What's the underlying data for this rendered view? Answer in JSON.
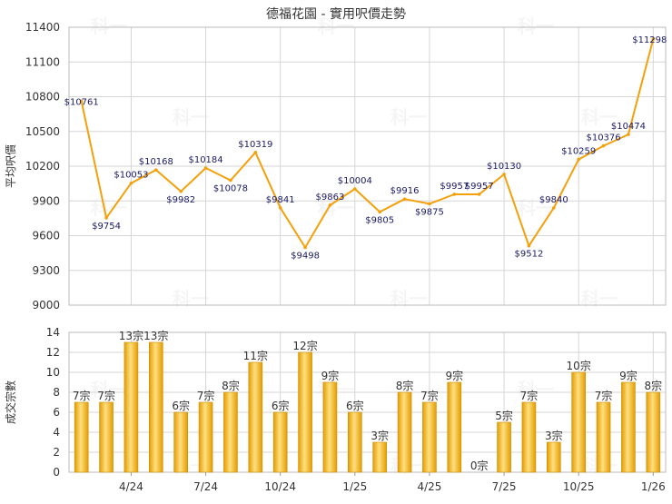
{
  "title": "德福花園 - 實用呎價走勢",
  "watermark": "科一",
  "colors": {
    "line": "#f5a00a",
    "bar_light": "#ffd86a",
    "bar_dark": "#e09a00",
    "grid": "#d6d6d6",
    "text": "#333333"
  },
  "chart_data": [
    {
      "type": "line",
      "title": "德福花園 - 實用呎價走勢",
      "ylabel": "平均呎價",
      "ylim": [
        9000,
        11400
      ],
      "yticks": [
        9000,
        9300,
        9600,
        9900,
        10200,
        10500,
        10800,
        11100,
        11400
      ],
      "grid": true,
      "values": [
        10761,
        9754,
        10053,
        10168,
        9982,
        10184,
        10078,
        10319,
        9841,
        9498,
        9863,
        10004,
        9805,
        9916,
        9875,
        9957,
        9957,
        10130,
        9512,
        9840,
        10259,
        10376,
        10474,
        11298
      ],
      "labels": [
        "$10761",
        "$9754",
        "$10053",
        "$10168",
        "$9982",
        "$10184",
        "$10078",
        "$10319",
        "$9841",
        "$9498",
        "$9863",
        "$10004",
        "$9805",
        "$9916",
        "$9875",
        "$9957",
        "$9957",
        "$10130",
        "$9512",
        "$9840",
        "$10259",
        "$10376",
        "$10474",
        "$11298"
      ]
    },
    {
      "type": "bar",
      "ylabel": "成交宗數",
      "ylim": [
        0,
        14
      ],
      "yticks": [
        0,
        2,
        4,
        6,
        8,
        10,
        12,
        14
      ],
      "grid": true,
      "values": [
        7,
        7,
        13,
        13,
        6,
        7,
        8,
        11,
        6,
        12,
        9,
        6,
        3,
        8,
        7,
        9,
        0,
        5,
        7,
        3,
        10,
        7,
        9,
        8
      ],
      "labels": [
        "7宗",
        "7宗",
        "13宗",
        "13宗",
        "6宗",
        "7宗",
        "8宗",
        "11宗",
        "6宗",
        "12宗",
        "9宗",
        "6宗",
        "3宗",
        "8宗",
        "7宗",
        "9宗",
        "0宗",
        "5宗",
        "7宗",
        "3宗",
        "10宗",
        "7宗",
        "9宗",
        "8宗"
      ],
      "x_tick_labels": [
        {
          "index": 2,
          "label": "4/24"
        },
        {
          "index": 5,
          "label": "7/24"
        },
        {
          "index": 8,
          "label": "10/24"
        },
        {
          "index": 11,
          "label": "1/25"
        },
        {
          "index": 14,
          "label": "4/25"
        },
        {
          "index": 17,
          "label": "7/25"
        },
        {
          "index": 20,
          "label": "10/25"
        },
        {
          "index": 23,
          "label": "1/26"
        }
      ]
    }
  ]
}
